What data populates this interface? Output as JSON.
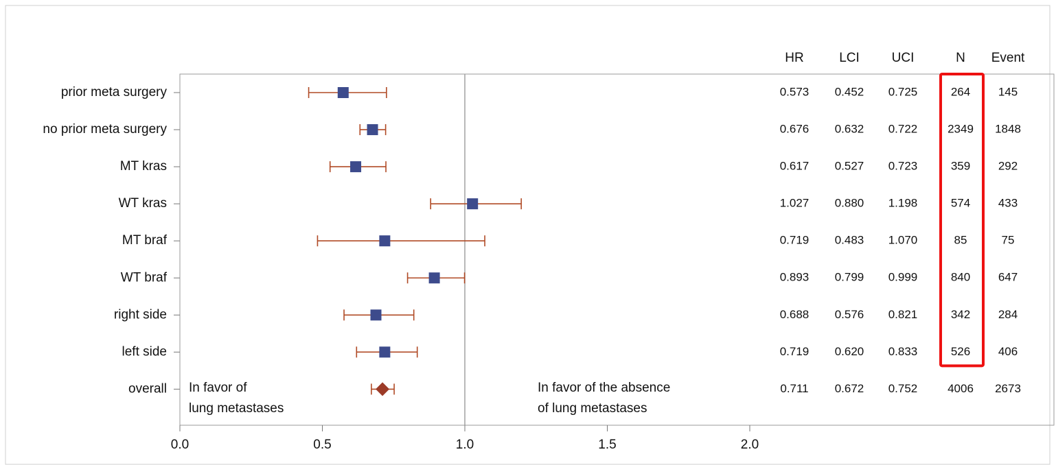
{
  "chart_data": {
    "type": "forest",
    "categories": [
      "prior meta surgery",
      "no prior meta surgery",
      "MT kras",
      "WT kras",
      "MT braf",
      "WT braf",
      "right side",
      "left side",
      "overall"
    ],
    "columns": [
      {
        "name": "HR",
        "values": [
          0.573,
          0.676,
          0.617,
          1.027,
          0.719,
          0.893,
          0.688,
          0.719,
          0.711
        ],
        "value_labels": [
          "0.573",
          "0.676",
          "0.617",
          "1.027",
          "0.719",
          "0.893",
          "0.688",
          "0.719",
          "0.711"
        ]
      },
      {
        "name": "LCI",
        "values": [
          0.452,
          0.632,
          0.527,
          0.88,
          0.483,
          0.799,
          0.576,
          0.62,
          0.672
        ],
        "value_labels": [
          "0.452",
          "0.632",
          "0.527",
          "0.880",
          "0.483",
          "0.799",
          "0.576",
          "0.620",
          "0.672"
        ]
      },
      {
        "name": "UCI",
        "values": [
          0.725,
          0.722,
          0.723,
          1.198,
          1.07,
          0.999,
          0.821,
          0.833,
          0.752
        ],
        "value_labels": [
          "0.725",
          "0.722",
          "0.723",
          "1.198",
          "1.070",
          "0.999",
          "0.821",
          "0.833",
          "0.752"
        ]
      },
      {
        "name": "N",
        "values": [
          264,
          2349,
          359,
          574,
          85,
          840,
          342,
          526,
          4006
        ]
      },
      {
        "name": "Event",
        "values": [
          145,
          1848,
          292,
          433,
          75,
          647,
          284,
          406,
          2673
        ]
      }
    ],
    "xlim": [
      0,
      2.1
    ],
    "xticks": [
      {
        "value": 0,
        "label": "0.0"
      },
      0.5,
      {
        "value": 1,
        "label": "1.0"
      },
      1.5,
      {
        "value": 2,
        "label": "2.0"
      }
    ],
    "reference_line": 1,
    "annotations": [
      [
        "In favor of",
        "lung metastases"
      ],
      [
        "In favor of the absence",
        "of lung metastases"
      ]
    ],
    "marker_color": "#3d4b8c",
    "whisker_color": "#b04a25",
    "summary_color": "#9c3b28",
    "highlight": {
      "column": "N",
      "color": "#ee1111"
    }
  }
}
